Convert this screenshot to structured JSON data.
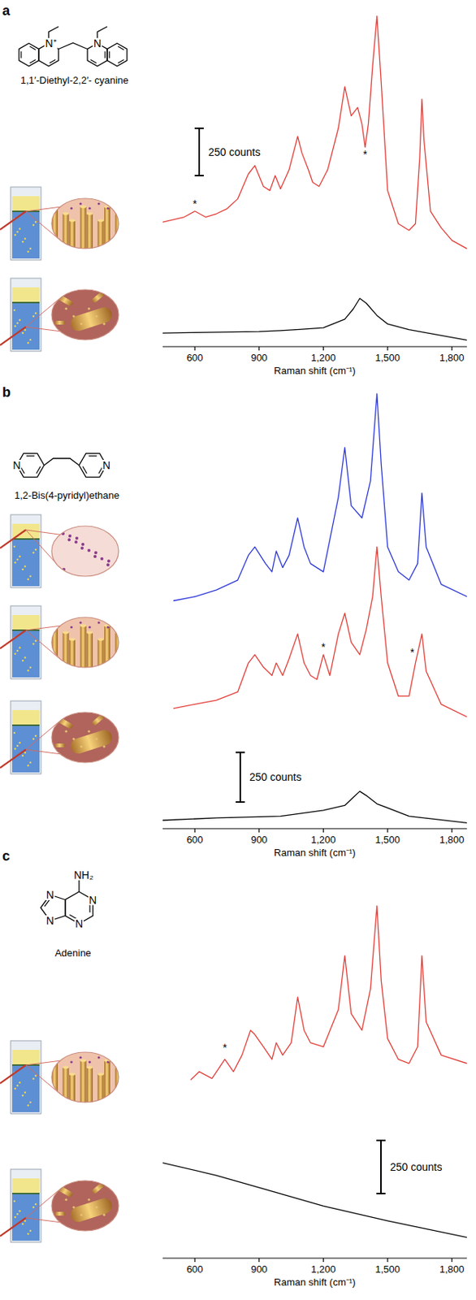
{
  "chart_data": [
    {
      "type": "line",
      "panel": "a",
      "molecule": {
        "name": "1,1′-Diethyl-2,2′- cyanine",
        "atoms": [
          "N⁺",
          "N"
        ]
      },
      "x_label": "Raman shift (cm⁻¹)",
      "xlim": [
        450,
        1870
      ],
      "xticks": [
        600,
        900,
        {
          "value": 1200,
          "label": "1,200"
        },
        {
          "value": 1500,
          "label": "1,500"
        },
        {
          "value": 1800,
          "label": "1,800"
        }
      ],
      "ylim": [
        0,
        1800
      ],
      "tick_labels": "x",
      "scale_bar": {
        "value": 250,
        "label": "250 counts"
      },
      "series": [
        {
          "color": "#e33b35",
          "x": [
            450,
            550,
            600,
            650,
            700,
            750,
            800,
            850,
            880,
            920,
            950,
            975,
            1000,
            1040,
            1080,
            1100,
            1130,
            1150,
            1180,
            1220,
            1270,
            1300,
            1330,
            1360,
            1380,
            1395,
            1410,
            1430,
            1450,
            1470,
            1500,
            1550,
            1600,
            1630,
            1650,
            1660,
            1670,
            1700,
            1750,
            1800,
            1870
          ],
          "values": [
            658,
            685,
            716,
            685,
            702,
            729,
            781,
            913,
            957,
            847,
            825,
            904,
            834,
            935,
            1111,
            1023,
            935,
            869,
            847,
            935,
            1155,
            1374,
            1220,
            1264,
            1177,
            1054,
            1177,
            1484,
            1747,
            1396,
            825,
            650,
            615,
            650,
            1001,
            1308,
            1089,
            716,
            628,
            562,
            518
          ]
        },
        {
          "color": "#000000",
          "x": [
            450,
            600,
            900,
            1000,
            1100,
            1200,
            1300,
            1340,
            1370,
            1400,
            1450,
            1500,
            1600,
            1870
          ],
          "values": [
            72,
            75,
            80,
            85,
            92,
            100,
            145,
            200,
            255,
            230,
            165,
            120,
            90,
            35
          ]
        }
      ],
      "annotations": [
        {
          "text": "*",
          "x": 600,
          "y": 735
        },
        {
          "text": "*",
          "x": 1395,
          "y": 995
        }
      ]
    },
    {
      "type": "line",
      "panel": "b",
      "molecule": {
        "name": "1,2-Bis(4-pyridyl)ethane",
        "atoms": [
          "N",
          "N"
        ]
      },
      "x_label": "Raman shift (cm⁻¹)",
      "xlim": [
        450,
        1870
      ],
      "xticks": [
        600,
        900,
        {
          "value": 1200,
          "label": "1,200"
        },
        {
          "value": 1500,
          "label": "1,500"
        },
        {
          "value": 1800,
          "label": "1,800"
        }
      ],
      "ylim": [
        0,
        2250
      ],
      "tick_labels": "x",
      "scale_bar": {
        "value": 250,
        "label": "250 counts"
      },
      "series": [
        {
          "color": "#2a35d8",
          "x": [
            500,
            600,
            700,
            800,
            850,
            880,
            930,
            960,
            980,
            1010,
            1040,
            1080,
            1110,
            1140,
            1200,
            1270,
            1300,
            1330,
            1380,
            1420,
            1450,
            1470,
            1500,
            1550,
            1600,
            1640,
            1660,
            1680,
            1750,
            1870
          ],
          "values": [
            1147,
            1168,
            1201,
            1251,
            1376,
            1418,
            1334,
            1293,
            1397,
            1314,
            1376,
            1564,
            1418,
            1334,
            1293,
            1668,
            1918,
            1626,
            1564,
            1751,
            2189,
            1835,
            1418,
            1293,
            1251,
            1334,
            1689,
            1418,
            1230,
            1168
          ]
        },
        {
          "color": "#e33b35",
          "x": [
            500,
            600,
            700,
            800,
            850,
            880,
            920,
            960,
            980,
            1010,
            1040,
            1080,
            1110,
            1140,
            1170,
            1200,
            1230,
            1270,
            1300,
            1330,
            1370,
            1400,
            1430,
            1450,
            1470,
            1500,
            1550,
            1600,
            1630,
            1660,
            1680,
            1750,
            1870
          ],
          "values": [
            605,
            626,
            646,
            688,
            834,
            876,
            813,
            771,
            834,
            771,
            855,
            980,
            834,
            771,
            751,
            876,
            771,
            980,
            1084,
            938,
            876,
            1001,
            1168,
            1418,
            1168,
            834,
            667,
            667,
            834,
            980,
            792,
            626,
            563
          ]
        },
        {
          "color": "#000000",
          "x": [
            450,
            700,
            1000,
            1200,
            1300,
            1340,
            1370,
            1400,
            1450,
            1600,
            1870
          ],
          "values": [
            42,
            54,
            63,
            92,
            117,
            158,
            188,
            167,
            125,
            63,
            29
          ]
        }
      ],
      "annotations": [
        {
          "text": "*",
          "x": 1200,
          "y": 895
        },
        {
          "text": "*",
          "x": 1615,
          "y": 870
        }
      ]
    },
    {
      "type": "line",
      "panel": "c",
      "molecule": {
        "name": "Adenine",
        "atoms": [
          "NH₂",
          "N",
          "N",
          "N",
          "N"
        ]
      },
      "x_label": "Raman shift (cm⁻¹)",
      "xlim": [
        450,
        1870
      ],
      "xticks": [
        600,
        900,
        {
          "value": 1200,
          "label": "1,200"
        },
        {
          "value": 1500,
          "label": "1,500"
        },
        {
          "value": 1800,
          "label": "1,800"
        }
      ],
      "ylim": [
        0,
        1700
      ],
      "tick_labels": "x",
      "scale_bar": {
        "value": 250,
        "label": "250 counts"
      },
      "series": [
        {
          "color": "#e33b35",
          "x": [
            580,
            620,
            680,
            740,
            780,
            820,
            860,
            880,
            920,
            960,
            980,
            1010,
            1050,
            1080,
            1110,
            1140,
            1200,
            1270,
            1300,
            1330,
            1380,
            1420,
            1450,
            1470,
            1500,
            1550,
            1600,
            1640,
            1660,
            1680,
            1750,
            1870
          ],
          "values": [
            839,
            878,
            846,
            936,
            878,
            956,
            1073,
            1053,
            995,
            936,
            1014,
            956,
            1014,
            1229,
            1073,
            1014,
            995,
            1170,
            1424,
            1151,
            1073,
            1268,
            1658,
            1307,
            1034,
            936,
            917,
            995,
            1424,
            1112,
            956,
            917
          ]
        },
        {
          "color": "#000000",
          "x": [
            450,
            700,
            900,
            1200,
            1500,
            1870
          ],
          "values": [
            449,
            390,
            332,
            246,
            176,
            98
          ]
        }
      ],
      "annotations": [
        {
          "text": "*",
          "x": 740,
          "y": 975
        }
      ]
    }
  ]
}
